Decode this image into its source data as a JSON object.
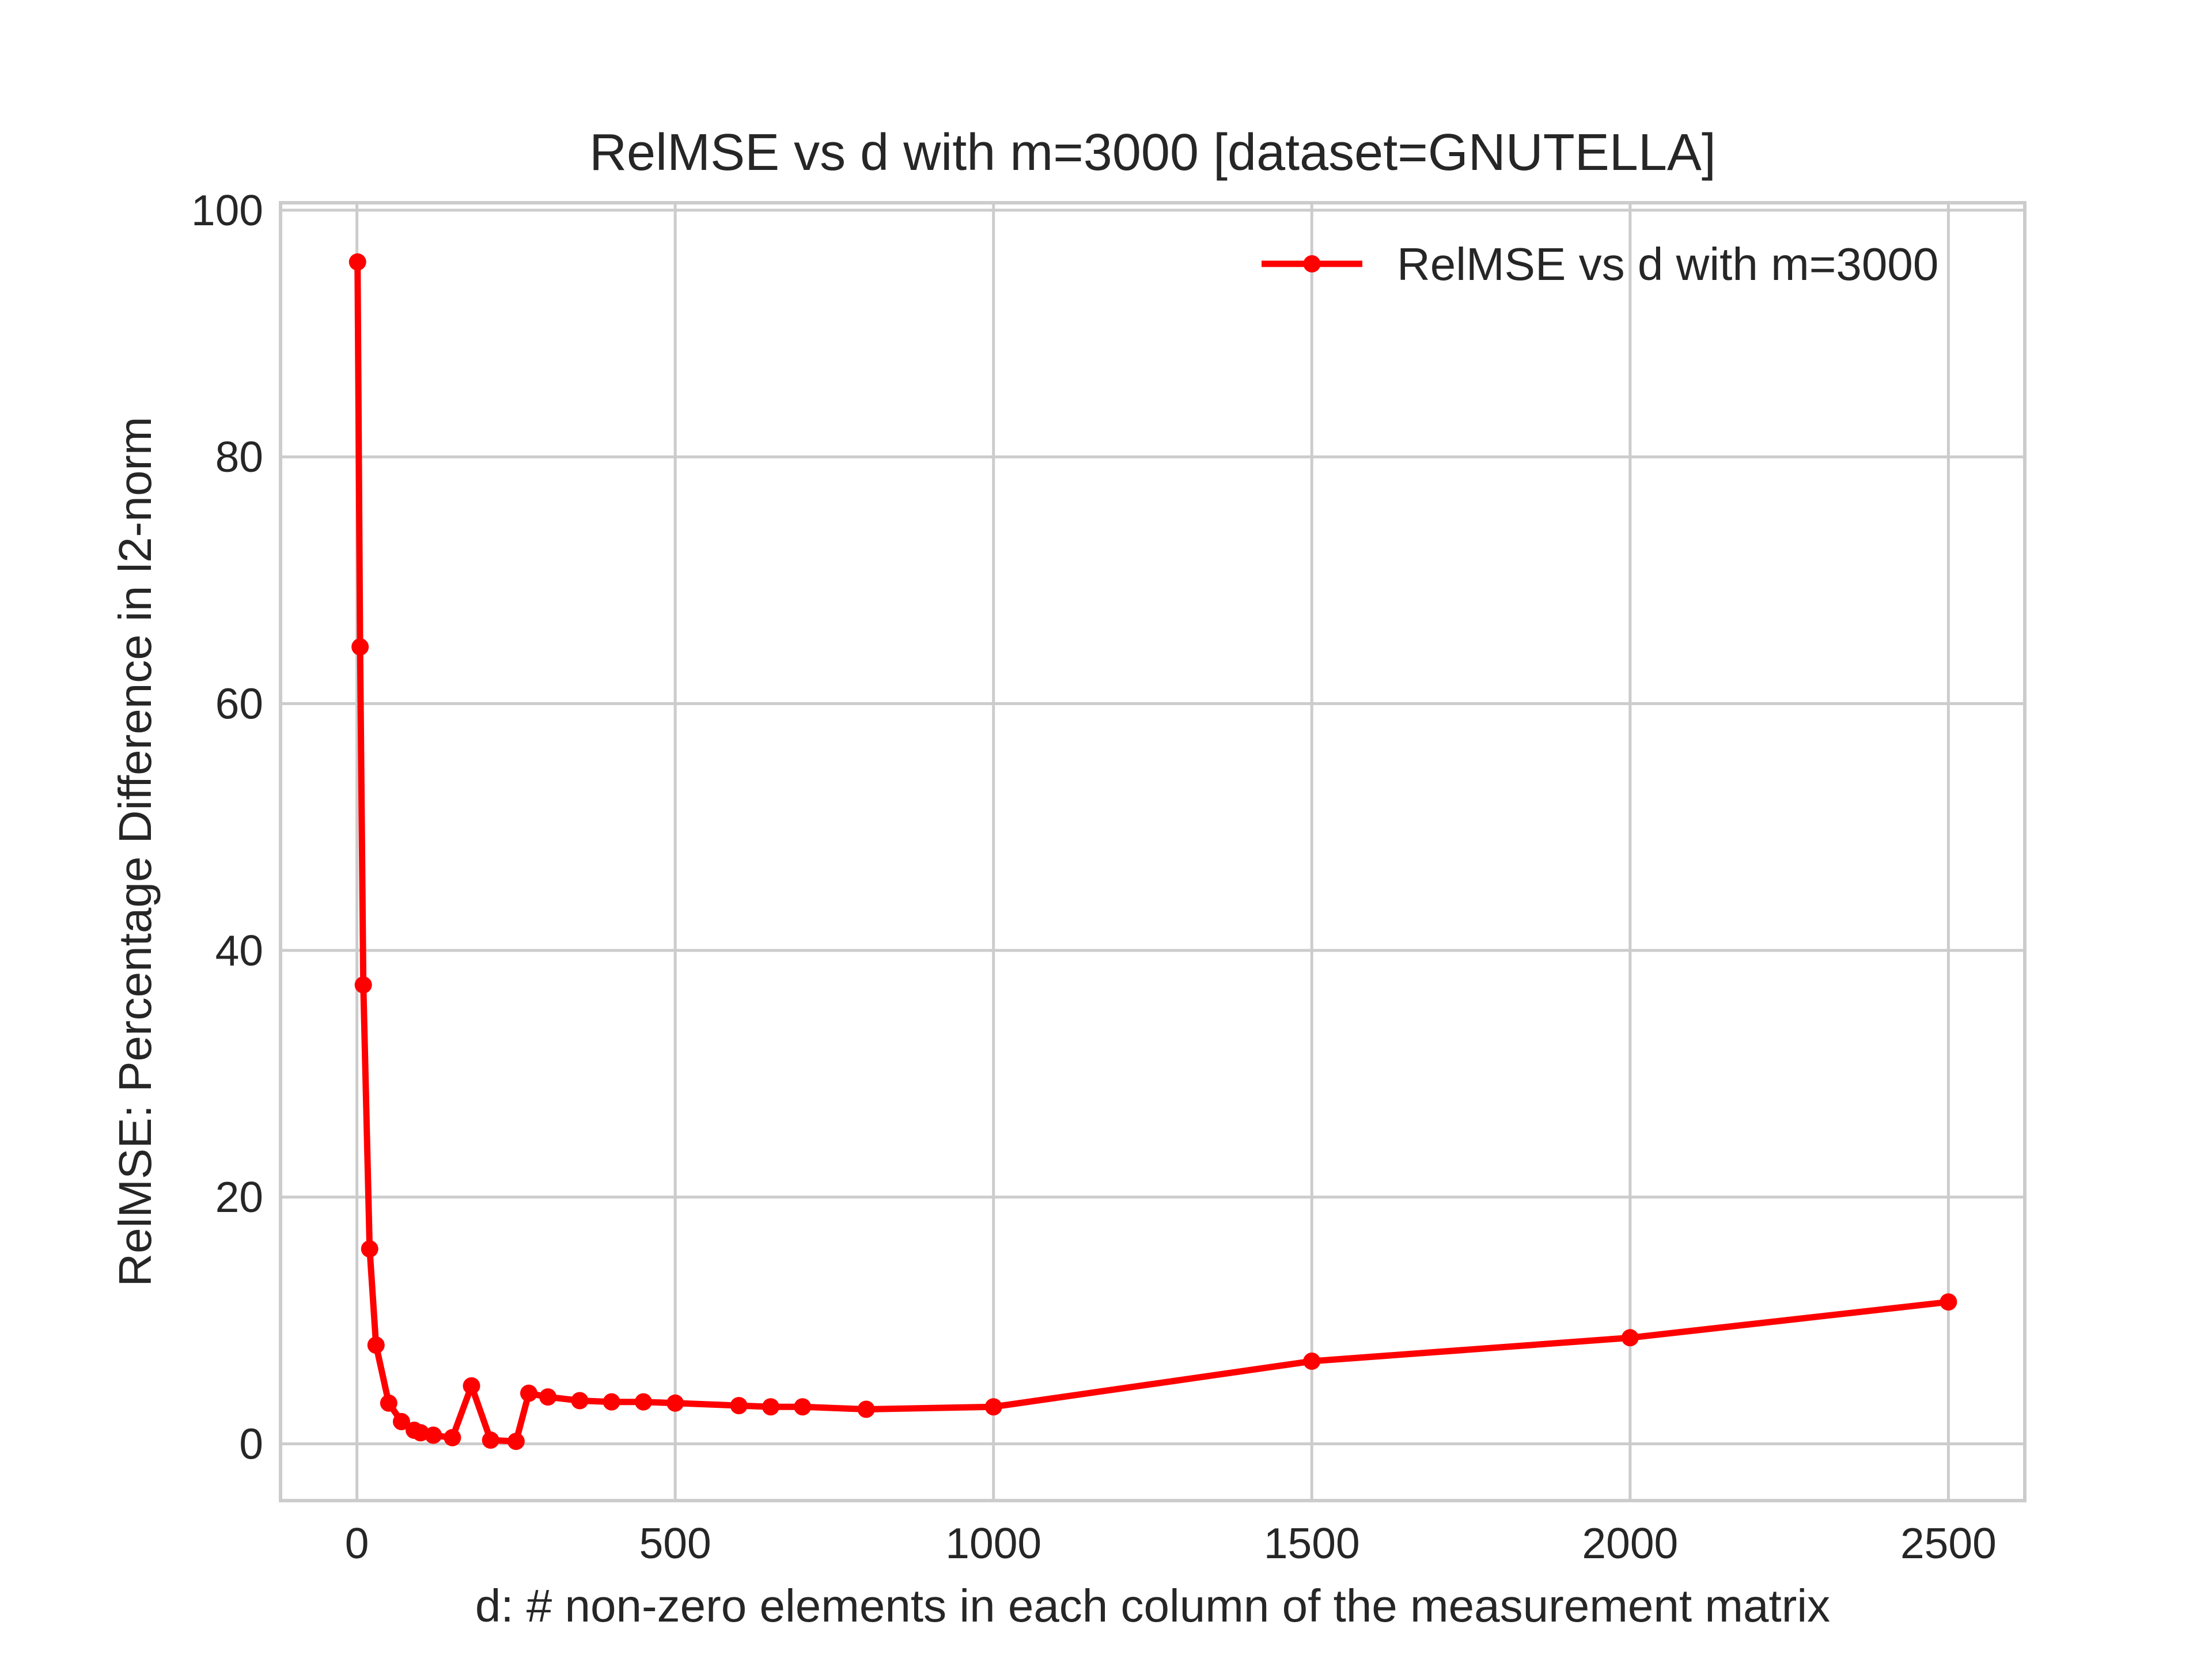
{
  "chart_data": {
    "type": "line",
    "title": "RelMSE vs d with m=3000 [dataset=GNUTELLA]",
    "xlabel": "d: # non-zero elements in each column of the measurement matrix",
    "ylabel": "RelMSE: Percentage Difference in l2-norm",
    "xlim": [
      -120,
      2620
    ],
    "ylim": [
      -4.6,
      100.6
    ],
    "xticks": [
      0,
      500,
      1000,
      1500,
      2000,
      2500
    ],
    "yticks": [
      0,
      20,
      40,
      60,
      80,
      100
    ],
    "grid": true,
    "legend_position": "top-right",
    "series": [
      {
        "name": "RelMSE vs d with m=3000",
        "color": "#ff0000",
        "marker": "circle",
        "x": [
          1,
          5,
          10,
          20,
          30,
          50,
          70,
          90,
          100,
          120,
          150,
          180,
          210,
          250,
          270,
          300,
          350,
          400,
          450,
          500,
          600,
          650,
          700,
          800,
          1000,
          1500,
          2000,
          2500
        ],
        "y": [
          95.8,
          64.6,
          37.2,
          15.8,
          8.0,
          3.3,
          1.8,
          1.1,
          0.9,
          0.7,
          0.5,
          4.7,
          0.3,
          0.2,
          4.1,
          3.8,
          3.5,
          3.4,
          3.4,
          3.3,
          3.1,
          3.0,
          3.0,
          2.8,
          3.0,
          6.7,
          8.6,
          11.5
        ]
      }
    ]
  }
}
